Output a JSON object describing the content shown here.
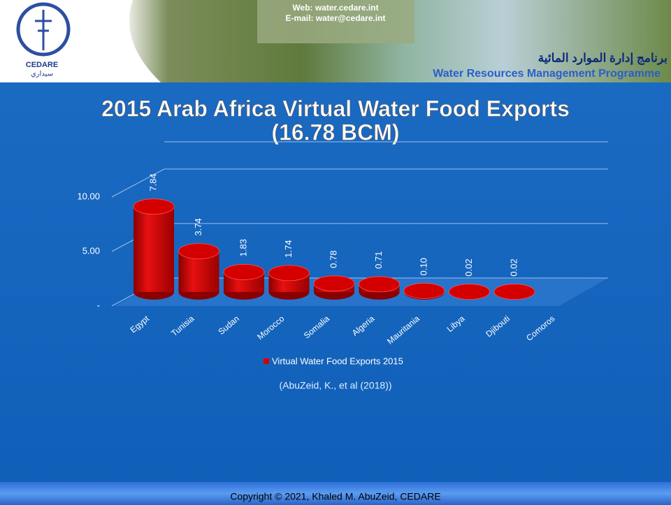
{
  "header": {
    "logo": "CEDARE",
    "logo_arabic": "سيداري",
    "web": "Web: water.cedare.int",
    "email": "E-mail: water@cedare.int",
    "programme_arabic": "برنامج إدارة الموارد المائية",
    "programme": "Water Resources Management Programme"
  },
  "chart_data": {
    "type": "bar",
    "title": "2015 Arab Africa Virtual Water Food Exports",
    "subtitle": "(16.78 BCM)",
    "categories": [
      "Egypt",
      "Tunisia",
      "Sudan",
      "Morocco",
      "Somalia",
      "Algeria",
      "Mauritania",
      "Libya",
      "Djibouti",
      "Comoros"
    ],
    "series": [
      {
        "name": "Virtual Water Food Exports 2015",
        "color": "#d40000",
        "values": [
          7.84,
          3.74,
          1.83,
          1.74,
          0.78,
          0.71,
          0.1,
          0.02,
          0.02,
          null
        ],
        "value_labels": [
          "7.84",
          "3.74",
          "1.83",
          "1.74",
          "0.78",
          "0.71",
          "0.10",
          "0.02",
          "0.02",
          null
        ]
      }
    ],
    "ylim": [
      0,
      12.5
    ],
    "yticks": [
      {
        "value": 0,
        "label": "-"
      },
      {
        "value": 5,
        "label": "5.00"
      },
      {
        "value": 10,
        "label": "10.00"
      }
    ],
    "grid": true,
    "legend": "bottom",
    "source": "(AbuZeid, K., et al (2018))"
  },
  "footer": {
    "copyright": "Copyright © 2021, Khaled M. AbuZeid, CEDARE"
  }
}
